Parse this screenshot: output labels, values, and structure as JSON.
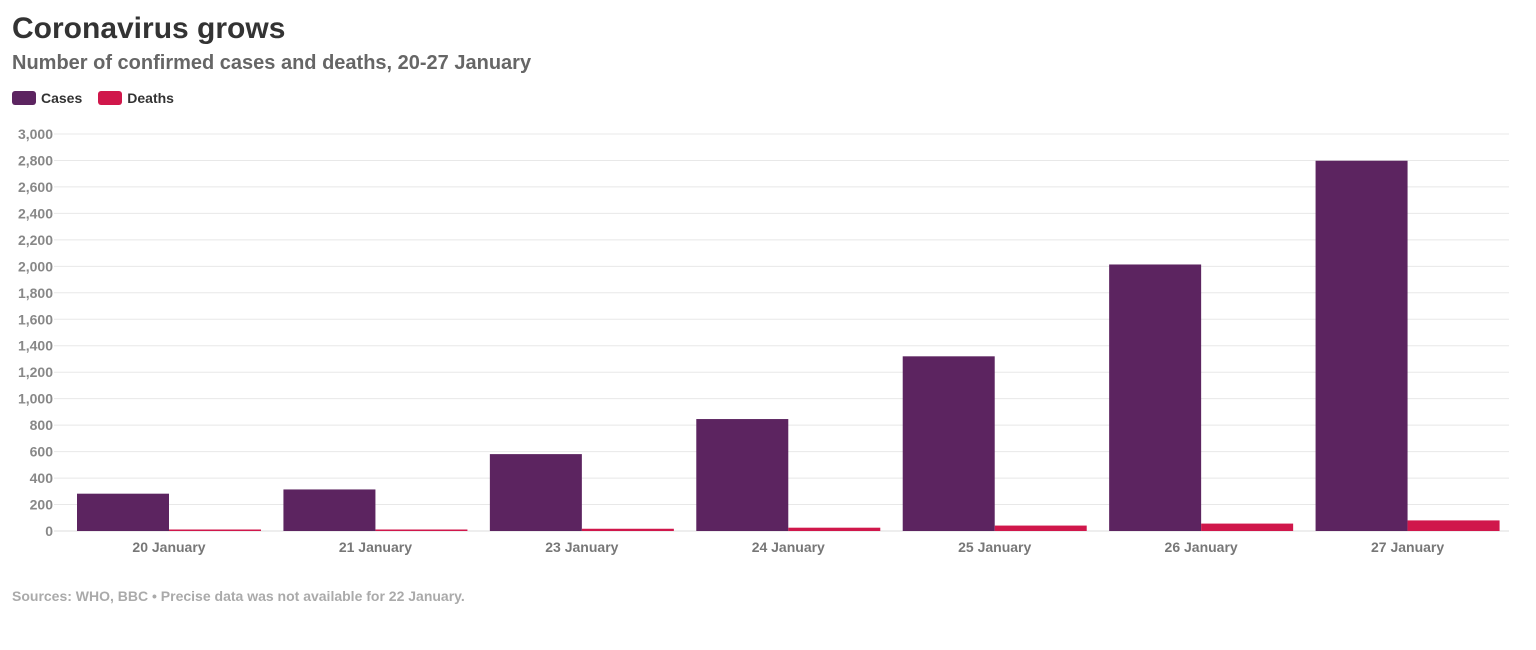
{
  "title": "Coronavirus grows",
  "subtitle": "Number of confirmed cases and deaths, 20-27 January",
  "footer": "Sources: WHO, BBC • Precise data was not available for 22 January.",
  "colors": {
    "cases": "#5c2460",
    "deaths": "#d0174b",
    "grid": "#e8e8e8"
  },
  "chart_data": {
    "type": "bar",
    "categories": [
      "20 January",
      "21 January",
      "23 January",
      "24 January",
      "25 January",
      "26 January",
      "27 January"
    ],
    "series": [
      {
        "name": "Cases",
        "values": [
          282,
          314,
          581,
          846,
          1320,
          2014,
          2798
        ]
      },
      {
        "name": "Deaths",
        "values": [
          6,
          6,
          17,
          25,
          41,
          56,
          80
        ]
      }
    ],
    "ylim": [
      0,
      3000
    ],
    "yticks": [
      0,
      200,
      400,
      600,
      800,
      1000,
      1200,
      1400,
      1600,
      1800,
      2000,
      2200,
      2400,
      2600,
      2800,
      3000
    ],
    "ytick_labels": [
      "0",
      "200",
      "400",
      "600",
      "800",
      "1,000",
      "1,200",
      "1,400",
      "1,600",
      "1,800",
      "2,000",
      "2,200",
      "2,400",
      "2,600",
      "2,800",
      "3,000"
    ],
    "grid": true,
    "legend": "top-left"
  }
}
